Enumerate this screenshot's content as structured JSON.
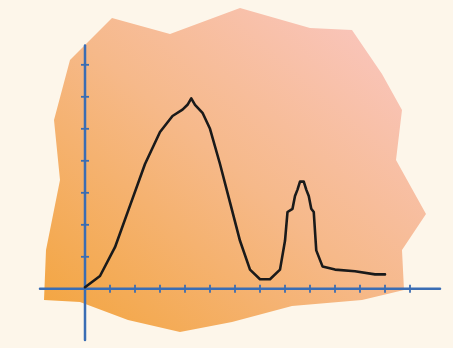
{
  "chart_data": {
    "type": "line",
    "x": [
      0,
      0.6,
      1.2,
      1.8,
      2.4,
      3.0,
      3.5,
      3.9,
      4.1,
      4.25,
      4.4,
      4.7,
      5.0,
      5.4,
      5.8,
      6.2,
      6.6,
      7.0,
      7.4,
      7.8,
      8.0,
      8.1,
      8.3,
      8.4,
      8.5,
      8.6,
      8.75,
      8.85,
      8.95,
      9.05,
      9.15,
      9.25,
      9.5,
      10.0,
      10.8,
      11.6,
      12.0
    ],
    "values": [
      0.05,
      0.4,
      1.3,
      2.6,
      3.9,
      4.9,
      5.4,
      5.6,
      5.75,
      5.95,
      5.75,
      5.5,
      5.0,
      3.9,
      2.7,
      1.5,
      0.6,
      0.3,
      0.3,
      0.6,
      1.5,
      2.4,
      2.5,
      2.9,
      3.1,
      3.35,
      3.35,
      3.1,
      2.9,
      2.5,
      2.4,
      1.2,
      0.7,
      0.6,
      0.55,
      0.45,
      0.45
    ],
    "color": "#1a1a1a",
    "xlim": [
      -1.8,
      14.2
    ],
    "xticks": [
      0,
      1,
      2,
      3,
      4,
      5,
      6,
      7,
      8,
      9,
      10,
      11,
      12,
      13
    ],
    "ylim": [
      -1.6,
      7.6
    ],
    "yticks": [
      0,
      1,
      2,
      3,
      4,
      5,
      6,
      7
    ],
    "grid": false,
    "tick_labels": false
  }
}
